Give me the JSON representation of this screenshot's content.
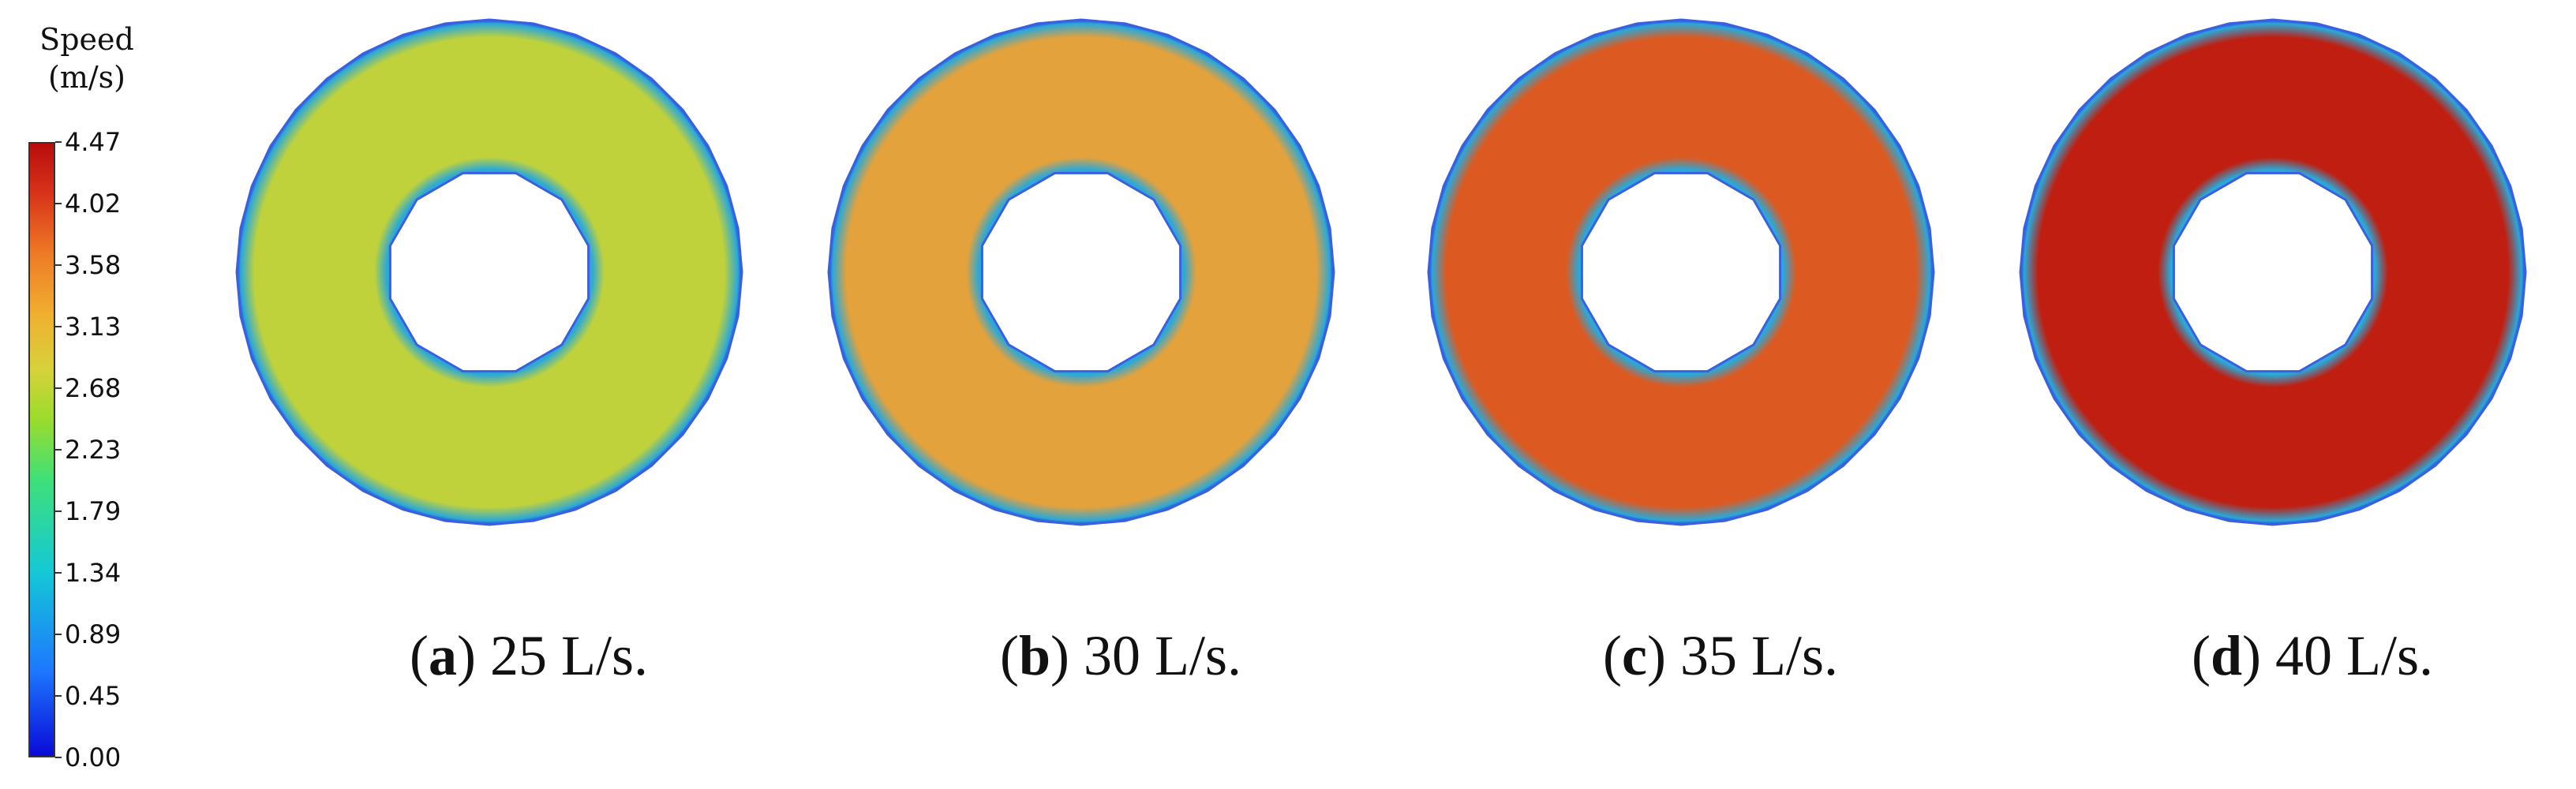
{
  "legend": {
    "title_line1": "Speed",
    "title_line2": "(m/s)",
    "ticks": [
      "4.47",
      "4.02",
      "3.58",
      "3.13",
      "2.68",
      "2.23",
      "1.79",
      "1.34",
      "0.89",
      "0.45",
      "0.00"
    ],
    "min_color": "#0a0ad8",
    "max_color": "#b80c0c"
  },
  "panels": [
    {
      "letter": "a",
      "label": "25 L/s.",
      "speed_mean_mps": 2.4,
      "fill_color": "#bfd23c",
      "edge_color": "#2aa8d8"
    },
    {
      "letter": "b",
      "label": "30 L/s.",
      "speed_mean_mps": 3.2,
      "fill_color": "#e4a23c",
      "edge_color": "#2aa8d8"
    },
    {
      "letter": "c",
      "label": "35 L/s.",
      "speed_mean_mps": 3.8,
      "fill_color": "#dc5a22",
      "edge_color": "#2aa8d8"
    },
    {
      "letter": "d",
      "label": "40 L/s.",
      "speed_mean_mps": 4.3,
      "fill_color": "#c01e10",
      "edge_color": "#2aa8d8"
    }
  ]
}
